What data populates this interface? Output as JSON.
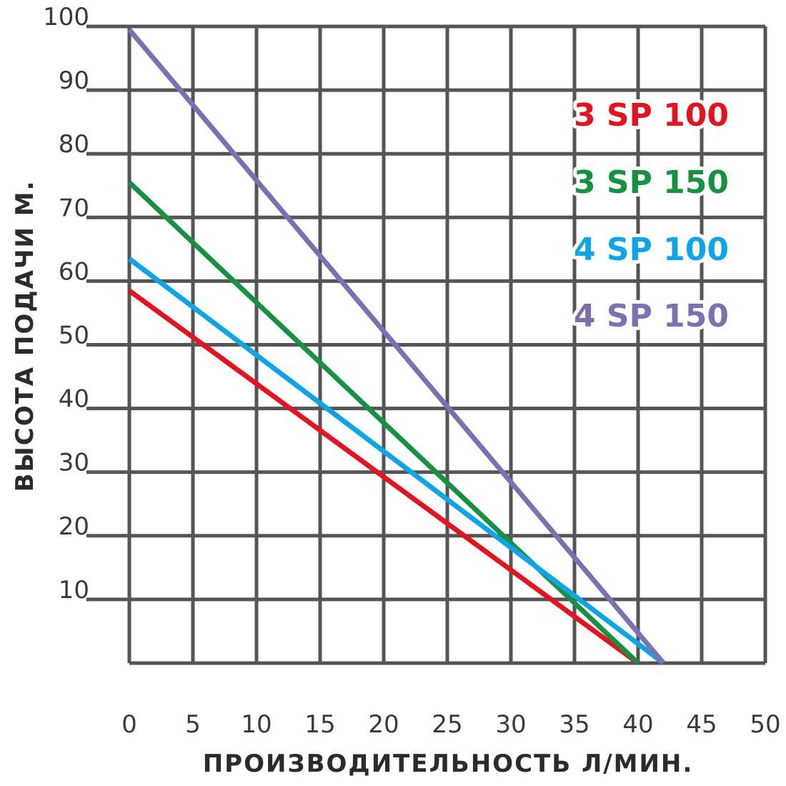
{
  "chart_data": {
    "type": "line",
    "xlabel": "ПРОИЗВОДИТЕЛЬНОСТЬ Л/МИН.",
    "ylabel": "ВЫСОТА ПОДАЧИ М.",
    "xlim": [
      0,
      50
    ],
    "ylim": [
      0,
      100
    ],
    "x_ticks": [
      "0",
      "5",
      "10",
      "15",
      "20",
      "25",
      "30",
      "35",
      "40",
      "45",
      "50"
    ],
    "y_ticks": [
      "10",
      "20",
      "30",
      "40",
      "50",
      "60",
      "70",
      "80",
      "90",
      "100"
    ],
    "grid": true,
    "legend_position": "top-right",
    "series": [
      {
        "name": "3 SP 100",
        "color": "#e3141f",
        "x": [
          0,
          40
        ],
        "y": [
          58.5,
          0
        ]
      },
      {
        "name": "3 SP 150",
        "color": "#169142",
        "x": [
          0,
          40
        ],
        "y": [
          75.5,
          0
        ]
      },
      {
        "name": "4 SP 100",
        "color": "#0ea5e8",
        "x": [
          0,
          42
        ],
        "y": [
          63.5,
          0
        ]
      },
      {
        "name": "4 SP 150",
        "color": "#7d6fb2",
        "x": [
          0,
          42
        ],
        "y": [
          99.5,
          0
        ]
      }
    ]
  }
}
